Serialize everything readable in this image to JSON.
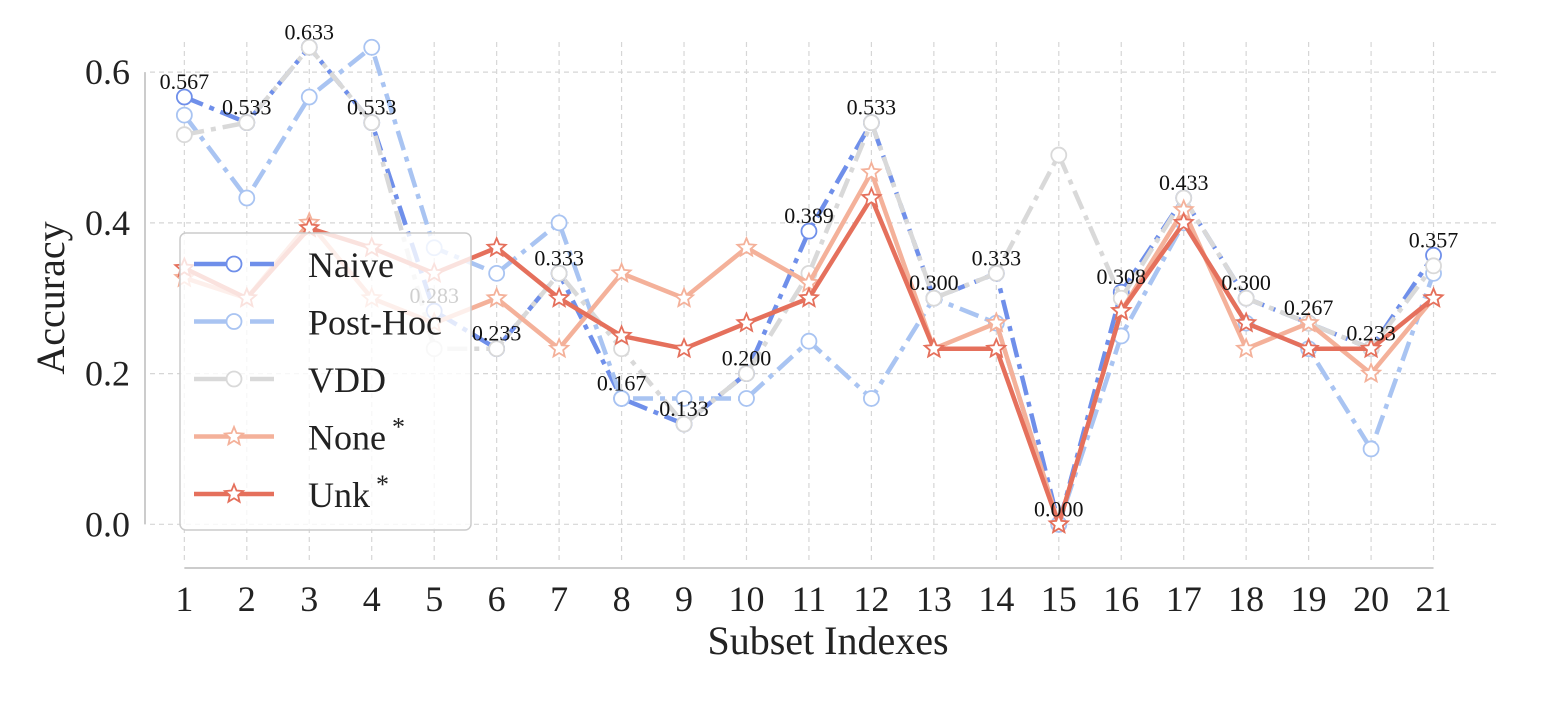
{
  "chart_data": {
    "type": "line",
    "xlabel": "Subset Indexes",
    "ylabel": "Accuracy",
    "x": [
      1,
      2,
      3,
      4,
      5,
      6,
      7,
      8,
      9,
      10,
      11,
      12,
      13,
      14,
      15,
      16,
      17,
      18,
      19,
      20,
      21
    ],
    "x_tick_labels": [
      "1",
      "2",
      "3",
      "4",
      "5",
      "6",
      "7",
      "8",
      "9",
      "10",
      "11",
      "12",
      "13",
      "14",
      "15",
      "16",
      "17",
      "18",
      "19",
      "20",
      "21"
    ],
    "xlim": [
      0.45,
      22.0
    ],
    "ylim": [
      -0.05,
      0.64
    ],
    "y_ticks": [
      0.0,
      0.2,
      0.4,
      0.6
    ],
    "y_tick_labels": [
      "0.0",
      "0.2",
      "0.4",
      "0.6"
    ],
    "grid": true,
    "legend_position": "center-left",
    "series": [
      {
        "name": "Naive",
        "color": "#6f8fea",
        "line_style": "dashdot",
        "marker": "circle",
        "values": [
          0.567,
          0.533,
          0.633,
          0.533,
          0.283,
          0.233,
          0.333,
          0.167,
          0.133,
          0.2,
          0.389,
          0.533,
          0.3,
          0.333,
          0.0,
          0.308,
          0.433,
          0.3,
          0.267,
          0.233,
          0.357
        ]
      },
      {
        "name": "Post-Hoc",
        "color": "#a9c4f2",
        "line_style": "dashdot",
        "marker": "circle",
        "values": [
          0.543,
          0.433,
          0.567,
          0.633,
          0.367,
          0.333,
          0.4,
          0.167,
          0.167,
          0.167,
          0.243,
          0.167,
          0.3,
          0.267,
          0.0,
          0.25,
          0.4,
          0.267,
          0.233,
          0.1,
          0.333
        ]
      },
      {
        "name": "VDD",
        "color": "#d9d9d9",
        "line_style": "dashdot",
        "marker": "circle",
        "values": [
          0.517,
          0.533,
          0.633,
          0.533,
          0.233,
          0.233,
          0.333,
          0.233,
          0.133,
          0.2,
          0.333,
          0.533,
          0.3,
          0.333,
          0.49,
          0.3,
          0.433,
          0.3,
          0.267,
          0.233,
          0.343
        ]
      },
      {
        "name": "None",
        "legend_suffix": "*",
        "color": "#f4b19a",
        "line_style": "solid",
        "marker": "star",
        "values": [
          0.327,
          0.3,
          0.4,
          0.3,
          0.267,
          0.3,
          0.233,
          0.333,
          0.3,
          0.367,
          0.32,
          0.467,
          0.233,
          0.267,
          0.0,
          0.283,
          0.417,
          0.233,
          0.267,
          0.2,
          0.3
        ]
      },
      {
        "name": "Unk",
        "legend_suffix": "*",
        "color": "#e5705c",
        "line_style": "solid",
        "marker": "star",
        "values": [
          0.34,
          0.3,
          0.393,
          0.367,
          0.333,
          0.367,
          0.3,
          0.25,
          0.233,
          0.267,
          0.3,
          0.433,
          0.233,
          0.233,
          0.0,
          0.283,
          0.4,
          0.267,
          0.233,
          0.233,
          0.3
        ]
      }
    ],
    "annotations": [
      {
        "x": 1,
        "y": 0.567,
        "text": "0.567"
      },
      {
        "x": 2,
        "y": 0.533,
        "text": "0.533"
      },
      {
        "x": 3,
        "y": 0.633,
        "text": "0.633"
      },
      {
        "x": 4,
        "y": 0.533,
        "text": "0.533"
      },
      {
        "x": 5,
        "y": 0.283,
        "text": "0.283"
      },
      {
        "x": 6,
        "y": 0.233,
        "text": "0.233"
      },
      {
        "x": 7,
        "y": 0.333,
        "text": "0.333"
      },
      {
        "x": 8,
        "y": 0.167,
        "text": "0.167"
      },
      {
        "x": 9,
        "y": 0.133,
        "text": "0.133"
      },
      {
        "x": 10,
        "y": 0.2,
        "text": "0.200"
      },
      {
        "x": 11,
        "y": 0.389,
        "text": "0.389"
      },
      {
        "x": 12,
        "y": 0.533,
        "text": "0.533"
      },
      {
        "x": 13,
        "y": 0.3,
        "text": "0.300"
      },
      {
        "x": 14,
        "y": 0.333,
        "text": "0.333"
      },
      {
        "x": 15,
        "y": 0.0,
        "text": "0.000"
      },
      {
        "x": 16,
        "y": 0.308,
        "text": "0.308"
      },
      {
        "x": 17,
        "y": 0.433,
        "text": "0.433"
      },
      {
        "x": 18,
        "y": 0.3,
        "text": "0.300"
      },
      {
        "x": 19,
        "y": 0.267,
        "text": "0.267"
      },
      {
        "x": 20,
        "y": 0.233,
        "text": "0.233"
      },
      {
        "x": 21,
        "y": 0.357,
        "text": "0.357"
      }
    ]
  }
}
